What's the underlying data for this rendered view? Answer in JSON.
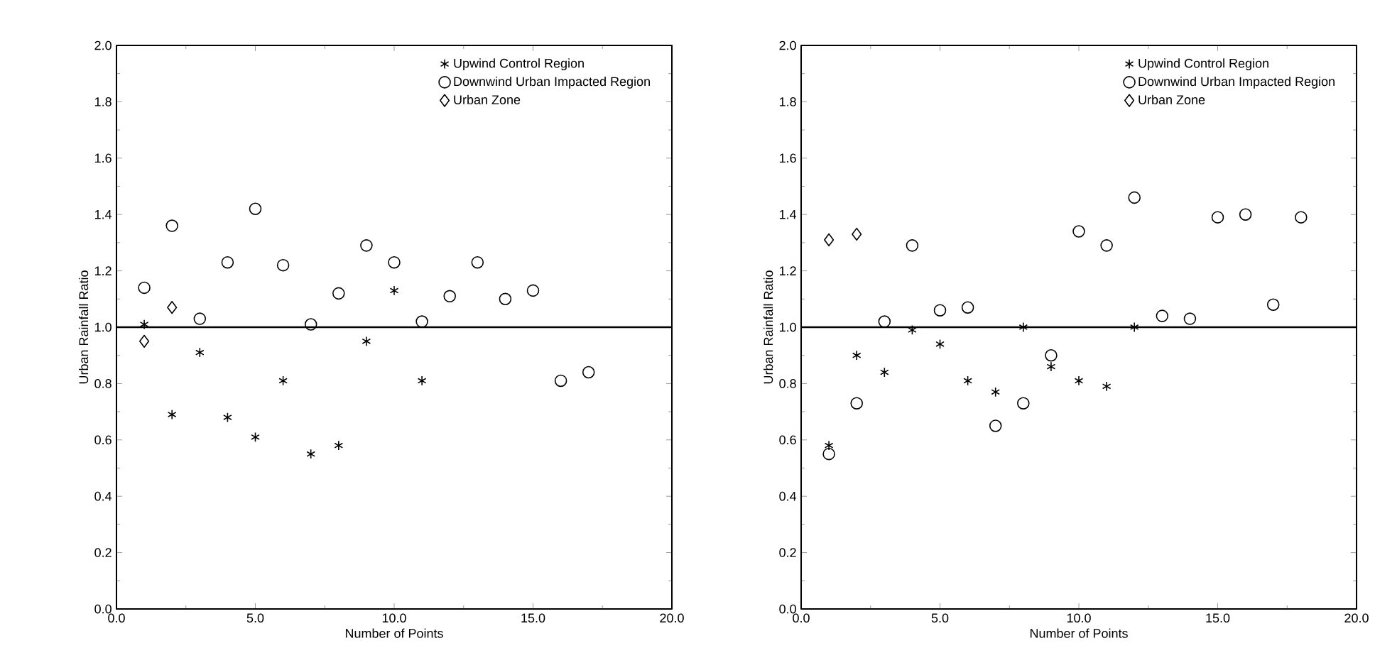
{
  "chart_data": [
    {
      "type": "scatter",
      "xlabel": "Number of Points",
      "ylabel": "Urban Rainfall Ratio",
      "xlim": [
        0,
        20
      ],
      "ylim": [
        0,
        2
      ],
      "xticks": [
        {
          "value": 0,
          "label": "0.0"
        },
        {
          "value": 2.5,
          "label": null
        },
        {
          "value": 5,
          "label": "5.0"
        },
        {
          "value": 7.5,
          "label": null
        },
        {
          "value": 10,
          "label": "10.0"
        },
        {
          "value": 12.5,
          "label": null
        },
        {
          "value": 15,
          "label": "15.0"
        },
        {
          "value": 17.5,
          "label": null
        },
        {
          "value": 20,
          "label": "20.0"
        }
      ],
      "yticks": [
        {
          "value": 0,
          "label": "0.0"
        },
        {
          "value": 0.1,
          "label": null
        },
        {
          "value": 0.2,
          "label": "0.2"
        },
        {
          "value": 0.3,
          "label": null
        },
        {
          "value": 0.4,
          "label": "0.4"
        },
        {
          "value": 0.5,
          "label": null
        },
        {
          "value": 0.6,
          "label": "0.6"
        },
        {
          "value": 0.7,
          "label": null
        },
        {
          "value": 0.8,
          "label": "0.8"
        },
        {
          "value": 0.9,
          "label": null
        },
        {
          "value": 1,
          "label": "1.0"
        },
        {
          "value": 1.1,
          "label": null
        },
        {
          "value": 1.2,
          "label": "1.2"
        },
        {
          "value": 1.3,
          "label": null
        },
        {
          "value": 1.4,
          "label": "1.4"
        },
        {
          "value": 1.5,
          "label": null
        },
        {
          "value": 1.6,
          "label": "1.6"
        },
        {
          "value": 1.7,
          "label": null
        },
        {
          "value": 1.8,
          "label": "1.8"
        },
        {
          "value": 1.9,
          "label": null
        },
        {
          "value": 2,
          "label": "2.0"
        }
      ],
      "grid": false,
      "legend": "top right",
      "ref_lines": [
        {
          "axis": "y",
          "value": 1
        }
      ],
      "series": [
        {
          "name": "Upwind Control Region",
          "color": "#000000",
          "marker": "cross",
          "x": [
            1,
            2,
            3,
            4,
            5,
            6,
            7,
            8,
            9,
            10,
            11
          ],
          "values": [
            1.01,
            0.69,
            0.91,
            0.68,
            0.61,
            0.81,
            0.55,
            0.58,
            0.95,
            1.13,
            0.81
          ]
        },
        {
          "name": "Downwind Urban Impacted Region",
          "color": "#000000",
          "marker": "circle",
          "x": [
            1,
            2,
            3,
            4,
            5,
            6,
            7,
            8,
            9,
            10,
            11,
            12,
            13,
            14,
            15,
            16,
            17
          ],
          "values": [
            1.14,
            1.36,
            1.03,
            1.23,
            1.42,
            1.22,
            1.01,
            1.12,
            1.29,
            1.23,
            1.02,
            1.11,
            1.23,
            1.1,
            1.13,
            0.81,
            0.84
          ]
        },
        {
          "name": "Urban Zone",
          "color": "#000000",
          "marker": "diamond",
          "x": [
            1,
            2
          ],
          "values": [
            0.95,
            1.07
          ]
        }
      ]
    },
    {
      "type": "scatter",
      "xlabel": "Number of Points",
      "ylabel": "Urban Rainfall Ratio",
      "xlim": [
        0,
        20
      ],
      "ylim": [
        0,
        2
      ],
      "xticks": [
        {
          "value": 0,
          "label": "0.0"
        },
        {
          "value": 2.5,
          "label": null
        },
        {
          "value": 5,
          "label": "5.0"
        },
        {
          "value": 7.5,
          "label": null
        },
        {
          "value": 10,
          "label": "10.0"
        },
        {
          "value": 12.5,
          "label": null
        },
        {
          "value": 15,
          "label": "15.0"
        },
        {
          "value": 17.5,
          "label": null
        },
        {
          "value": 20,
          "label": "20.0"
        }
      ],
      "yticks": [
        {
          "value": 0,
          "label": "0.0"
        },
        {
          "value": 0.1,
          "label": null
        },
        {
          "value": 0.2,
          "label": "0.2"
        },
        {
          "value": 0.3,
          "label": null
        },
        {
          "value": 0.4,
          "label": "0.4"
        },
        {
          "value": 0.5,
          "label": null
        },
        {
          "value": 0.6,
          "label": "0.6"
        },
        {
          "value": 0.7,
          "label": null
        },
        {
          "value": 0.8,
          "label": "0.8"
        },
        {
          "value": 0.9,
          "label": null
        },
        {
          "value": 1,
          "label": "1.0"
        },
        {
          "value": 1.1,
          "label": null
        },
        {
          "value": 1.2,
          "label": "1.2"
        },
        {
          "value": 1.3,
          "label": null
        },
        {
          "value": 1.4,
          "label": "1.4"
        },
        {
          "value": 1.5,
          "label": null
        },
        {
          "value": 1.6,
          "label": "1.6"
        },
        {
          "value": 1.7,
          "label": null
        },
        {
          "value": 1.8,
          "label": "1.8"
        },
        {
          "value": 1.9,
          "label": null
        },
        {
          "value": 2,
          "label": "2.0"
        }
      ],
      "grid": false,
      "legend": "top right",
      "ref_lines": [
        {
          "axis": "y",
          "value": 1
        }
      ],
      "series": [
        {
          "name": "Upwind Control Region",
          "color": "#000000",
          "marker": "cross",
          "x": [
            1,
            2,
            3,
            4,
            5,
            6,
            7,
            8,
            9,
            10,
            11,
            12
          ],
          "values": [
            0.58,
            0.9,
            0.84,
            0.99,
            0.94,
            0.81,
            0.77,
            1.0,
            0.86,
            0.81,
            0.79,
            1.0
          ]
        },
        {
          "name": "Downwind Urban Impacted Region",
          "color": "#000000",
          "marker": "circle",
          "x": [
            1,
            2,
            3,
            4,
            5,
            6,
            7,
            8,
            9,
            10,
            11,
            12,
            13,
            14,
            15,
            16,
            17,
            18
          ],
          "values": [
            0.55,
            0.73,
            1.02,
            1.29,
            1.06,
            1.07,
            0.65,
            0.73,
            0.9,
            1.34,
            1.29,
            1.46,
            1.04,
            1.03,
            1.39,
            1.4,
            1.08,
            1.39
          ]
        },
        {
          "name": "Urban Zone",
          "color": "#000000",
          "marker": "diamond",
          "x": [
            1,
            2
          ],
          "values": [
            1.31,
            1.33
          ]
        }
      ]
    }
  ]
}
